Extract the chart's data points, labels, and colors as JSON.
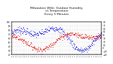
{
  "title": "Milwaukee Wthr: Outdoor Humidity\nvs Temperature\nEvery 5 Minutes",
  "title_fontsize": 3.2,
  "background_color": "#ffffff",
  "grid_color": "#aaaaaa",
  "blue_color": "#0000dd",
  "red_color": "#dd0000",
  "left_ylim": [
    20,
    100
  ],
  "right_ylim": [
    -20,
    80
  ],
  "left_yticks": [
    20,
    30,
    40,
    50,
    60,
    70,
    80,
    90,
    100
  ],
  "right_yticks": [
    -20,
    -10,
    0,
    10,
    20,
    30,
    40,
    50,
    60,
    70,
    80
  ],
  "num_points": 288,
  "num_xticks": 48
}
